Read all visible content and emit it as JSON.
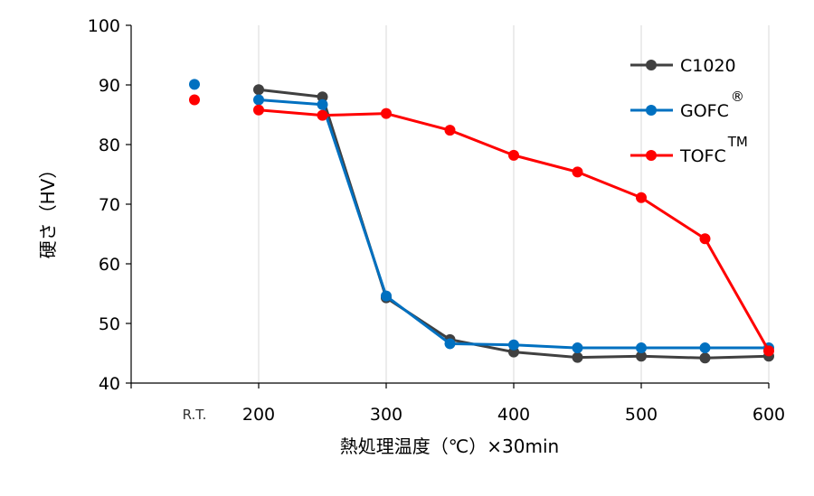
{
  "chart_data": {
    "type": "line",
    "title": "",
    "xlabel": "熱処理温度（℃）×30min",
    "ylabel": "硬さ（HV）",
    "ylim": [
      40,
      100
    ],
    "yticks": [
      40,
      50,
      60,
      70,
      80,
      90,
      100
    ],
    "xlim": [
      100,
      600
    ],
    "xticks": [
      200,
      300,
      400,
      500,
      600
    ],
    "rt_label": "R.T.",
    "grid": "vertical",
    "legend_position": "top-right",
    "series": [
      {
        "name": "C1020",
        "superscript": "",
        "color": "#404040",
        "rt_value": null,
        "x": [
          200,
          250,
          300,
          350,
          400,
          450,
          500,
          550,
          600
        ],
        "values": [
          89.2,
          88.0,
          54.3,
          47.3,
          45.2,
          44.3,
          44.5,
          44.2,
          44.5
        ]
      },
      {
        "name": "GOFC",
        "superscript": "®",
        "color": "#0070c0",
        "rt_value": 90.1,
        "x": [
          200,
          250,
          300,
          350,
          400,
          450,
          500,
          550,
          600
        ],
        "values": [
          87.5,
          86.7,
          54.6,
          46.6,
          46.4,
          45.9,
          45.9,
          45.9,
          45.9
        ]
      },
      {
        "name": "TOFC",
        "superscript": "TM",
        "color": "#ff0000",
        "rt_value": 87.5,
        "x": [
          200,
          250,
          300,
          350,
          400,
          450,
          500,
          550,
          600
        ],
        "values": [
          85.8,
          84.9,
          85.2,
          82.4,
          78.2,
          75.4,
          71.1,
          64.2,
          45.4
        ]
      }
    ]
  }
}
